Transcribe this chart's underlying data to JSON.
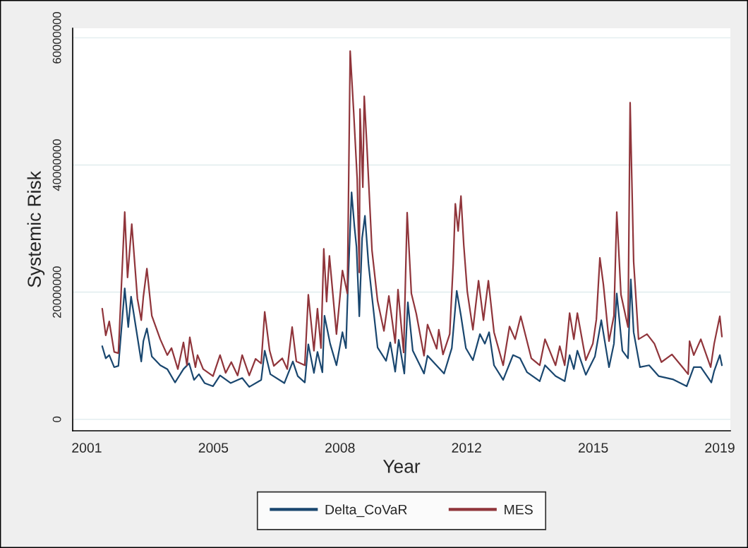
{
  "chart_data": {
    "type": "line",
    "xlabel": "Year",
    "ylabel": "Systemic Risk",
    "xlim": [
      2000.6,
      2019.3
    ],
    "ylim": [
      -1800000,
      61500000
    ],
    "xticks": [
      {
        "value": 2001.0,
        "label": "2001"
      },
      {
        "value": 2004.6,
        "label": "2005"
      },
      {
        "value": 2008.2,
        "label": "2008"
      },
      {
        "value": 2011.8,
        "label": "2012"
      },
      {
        "value": 2015.4,
        "label": "2015"
      },
      {
        "value": 2019.0,
        "label": "2019"
      }
    ],
    "yticks": [
      0,
      20000000,
      40000000,
      60000000
    ],
    "grid": "y",
    "legend": "bottom",
    "marker": "none",
    "line_style": "solid",
    "series": [
      {
        "name": "Delta_CoVaR",
        "color": "#1a476f",
        "x": [
          2001.44,
          2001.54,
          2001.64,
          2001.78,
          2001.9,
          2002.08,
          2002.18,
          2002.26,
          2002.55,
          2002.61,
          2002.71,
          2002.85,
          2003.09,
          2003.29,
          2003.51,
          2003.75,
          2003.91,
          2004.05,
          2004.19,
          2004.35,
          2004.59,
          2004.79,
          2005.09,
          2005.42,
          2005.62,
          2005.96,
          2006.06,
          2006.22,
          2006.62,
          2006.86,
          2007.0,
          2007.2,
          2007.3,
          2007.46,
          2007.56,
          2007.7,
          2007.76,
          2007.92,
          2008.1,
          2008.27,
          2008.37,
          2008.43,
          2008.53,
          2008.61,
          2008.67,
          2008.75,
          2008.83,
          2008.91,
          2009.01,
          2009.11,
          2009.27,
          2009.51,
          2009.63,
          2009.77,
          2009.87,
          2010.03,
          2010.13,
          2010.27,
          2010.59,
          2010.69,
          2011.16,
          2011.38,
          2011.52,
          2011.64,
          2011.78,
          2011.98,
          2012.18,
          2012.32,
          2012.44,
          2012.58,
          2012.84,
          2013.12,
          2013.32,
          2013.52,
          2013.88,
          2014.03,
          2014.33,
          2014.59,
          2014.73,
          2014.85,
          2014.95,
          2015.19,
          2015.45,
          2015.63,
          2015.85,
          2015.99,
          2016.07,
          2016.23,
          2016.39,
          2016.47,
          2016.55,
          2016.73,
          2016.99,
          2017.26,
          2017.66,
          2018.06,
          2018.26,
          2018.46,
          2018.76,
          2018.84,
          2019.0,
          2019.06
        ],
        "values": [
          11500000,
          9600000,
          10100000,
          8200000,
          8400000,
          20600000,
          14500000,
          19300000,
          9100000,
          12300000,
          14300000,
          9900000,
          8500000,
          7900000,
          5800000,
          7900000,
          8800000,
          6200000,
          7100000,
          5700000,
          5200000,
          6900000,
          5700000,
          6500000,
          5100000,
          6200000,
          10800000,
          7100000,
          5700000,
          9100000,
          6800000,
          5800000,
          11800000,
          7300000,
          10600000,
          7400000,
          16300000,
          11900000,
          8500000,
          13700000,
          11200000,
          21500000,
          35700000,
          30400000,
          27100000,
          16200000,
          28500000,
          32000000,
          24500000,
          19300000,
          11300000,
          9200000,
          12100000,
          7500000,
          12500000,
          7200000,
          18400000,
          10800000,
          7200000,
          10000000,
          7200000,
          11200000,
          20200000,
          16300000,
          11200000,
          9300000,
          13400000,
          11900000,
          13700000,
          8500000,
          6200000,
          10100000,
          9600000,
          7400000,
          6000000,
          8500000,
          6800000,
          6000000,
          10100000,
          7900000,
          10800000,
          7000000,
          9900000,
          15600000,
          8200000,
          11900000,
          19800000,
          10800000,
          9600000,
          22000000,
          13700000,
          8200000,
          8500000,
          6800000,
          6300000,
          5200000,
          8200000,
          8200000,
          5800000,
          7600000,
          10100000,
          8500000
        ]
      },
      {
        "name": "MES",
        "color": "#90353b",
        "x": [
          2001.44,
          2001.54,
          2001.64,
          2001.78,
          2001.9,
          2002.08,
          2002.16,
          2002.28,
          2002.44,
          2002.55,
          2002.61,
          2002.71,
          2002.85,
          2003.09,
          2003.29,
          2003.41,
          2003.59,
          2003.75,
          2003.85,
          2003.93,
          2004.09,
          2004.15,
          2004.31,
          2004.59,
          2004.79,
          2004.95,
          2005.11,
          2005.29,
          2005.42,
          2005.62,
          2005.8,
          2005.96,
          2006.06,
          2006.2,
          2006.32,
          2006.56,
          2006.7,
          2006.84,
          2006.96,
          2007.2,
          2007.3,
          2007.46,
          2007.56,
          2007.66,
          2007.74,
          2007.82,
          2007.9,
          2008.1,
          2008.27,
          2008.41,
          2008.49,
          2008.59,
          2008.69,
          2008.75,
          2008.77,
          2008.85,
          2008.89,
          2008.97,
          2009.11,
          2009.27,
          2009.45,
          2009.59,
          2009.77,
          2009.85,
          2010.01,
          2010.11,
          2010.23,
          2010.37,
          2010.59,
          2010.69,
          2010.95,
          2011.01,
          2011.13,
          2011.32,
          2011.42,
          2011.48,
          2011.56,
          2011.64,
          2011.72,
          2011.82,
          2011.98,
          2012.14,
          2012.28,
          2012.42,
          2012.58,
          2012.84,
          2013.02,
          2013.18,
          2013.34,
          2013.64,
          2013.88,
          2014.03,
          2014.33,
          2014.45,
          2014.59,
          2014.73,
          2014.85,
          2014.95,
          2015.19,
          2015.39,
          2015.49,
          2015.59,
          2015.69,
          2015.85,
          2015.99,
          2016.07,
          2016.19,
          2016.39,
          2016.45,
          2016.55,
          2016.69,
          2016.93,
          2017.14,
          2017.34,
          2017.64,
          2017.94,
          2018.1,
          2018.14,
          2018.26,
          2018.46,
          2018.74,
          2018.84,
          2019.0,
          2019.06
        ],
        "values": [
          17400000,
          13200000,
          15400000,
          10600000,
          10400000,
          32600000,
          22300000,
          30700000,
          19000000,
          15600000,
          19300000,
          23700000,
          16300000,
          12600000,
          10100000,
          11200000,
          7900000,
          12100000,
          8500000,
          12900000,
          8200000,
          10100000,
          7900000,
          6800000,
          10100000,
          7300000,
          9000000,
          6900000,
          10100000,
          6900000,
          9500000,
          8800000,
          16900000,
          10800000,
          8400000,
          9600000,
          7900000,
          14500000,
          9100000,
          8500000,
          19600000,
          10800000,
          17400000,
          11200000,
          26800000,
          18500000,
          25700000,
          13400000,
          23400000,
          19800000,
          57900000,
          48300000,
          37700000,
          23100000,
          48800000,
          36500000,
          50800000,
          42500000,
          26600000,
          18600000,
          13900000,
          19400000,
          12000000,
          20400000,
          10500000,
          32500000,
          19800000,
          16600000,
          10000000,
          14900000,
          11100000,
          14100000,
          10200000,
          13400000,
          24500000,
          33900000,
          29600000,
          35100000,
          27400000,
          20100000,
          14100000,
          21800000,
          15600000,
          21800000,
          13700000,
          8500000,
          14600000,
          12600000,
          16200000,
          9600000,
          8500000,
          12600000,
          8500000,
          11500000,
          8500000,
          16700000,
          12600000,
          16700000,
          9300000,
          11900000,
          15700000,
          25400000,
          21200000,
          12300000,
          16300000,
          32600000,
          19600000,
          14500000,
          49800000,
          24800000,
          12600000,
          13400000,
          11900000,
          9000000,
          10200000,
          8200000,
          7100000,
          12300000,
          10100000,
          12600000,
          8200000,
          11900000,
          16200000,
          13000000
        ]
      }
    ]
  }
}
